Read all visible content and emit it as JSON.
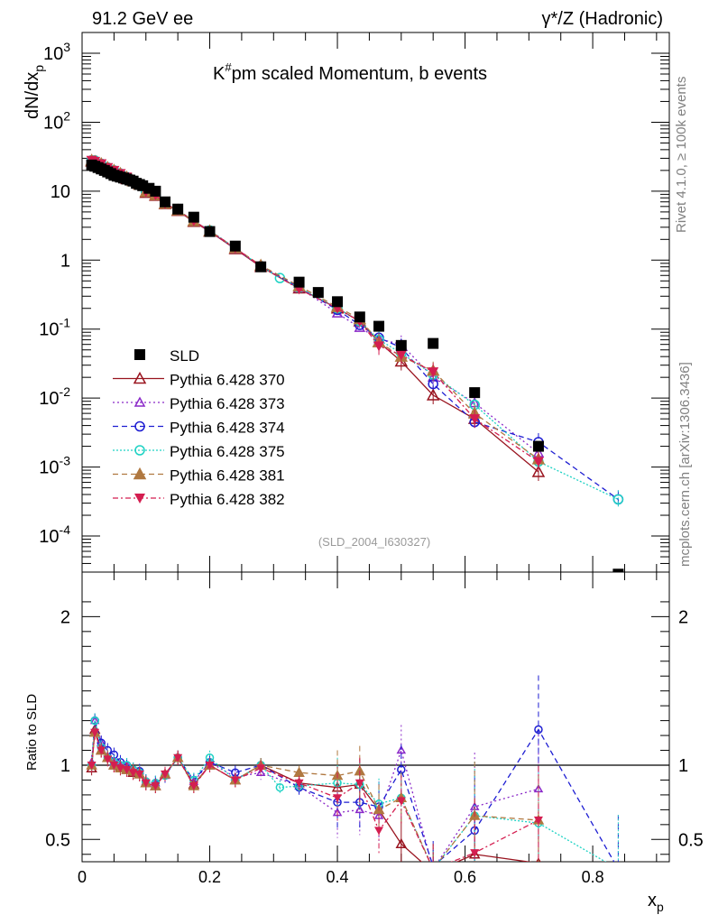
{
  "header": {
    "left_label": "91.2 GeV ee",
    "right_label": "γ*/Z (Hadronic)"
  },
  "side_text": {
    "rivet": "Rivet 4.1.0, ≥ 100k events",
    "site": "mcplots.cern.ch [arXiv:1306.3436]"
  },
  "colors": {
    "SLD": "#000000",
    "p370": "#99141f",
    "p373": "#8a28c8",
    "p374": "#1e1ed2",
    "p375": "#1ed2c4",
    "p381": "#b07840",
    "p382": "#d41e50"
  },
  "chart_data": {
    "type": "scatter",
    "title": "K#pm scaled Momentum, b events",
    "analysis_id": "(SLD_2004_I630327)",
    "xlabel": "x_p",
    "ylabel": "dN/dx_p",
    "ratio_ylabel": "Ratio to SLD",
    "xlim": [
      0,
      0.92
    ],
    "ylim": [
      3e-05,
      2000
    ],
    "ratio_ylim": [
      0.35,
      2.3
    ],
    "y_scale": "log",
    "legend_position": "center-left",
    "x_ticks": [
      "0",
      "0.2",
      "0.4",
      "0.6",
      "0.8"
    ],
    "y_ticks": [
      "10^3",
      "10^2",
      "10",
      "1",
      "10^-1",
      "10^-2",
      "10^-3",
      "10^-4"
    ],
    "ratio_ticks": [
      "0.5",
      "1",
      "2"
    ],
    "reference": {
      "name": "SLD",
      "x": [
        0.015,
        0.02,
        0.025,
        0.03,
        0.035,
        0.04,
        0.045,
        0.05,
        0.055,
        0.06,
        0.065,
        0.07,
        0.075,
        0.08,
        0.085,
        0.09,
        0.095,
        0.105,
        0.115,
        0.13,
        0.15,
        0.175,
        0.2,
        0.24,
        0.28,
        0.34,
        0.37,
        0.4,
        0.435,
        0.465,
        0.5,
        0.55,
        0.615,
        0.715,
        0.84
      ],
      "y": [
        24,
        23,
        22,
        21,
        20,
        19,
        18,
        17,
        16.5,
        16,
        15.5,
        15,
        14.5,
        14,
        13,
        12.5,
        12,
        11,
        10,
        7,
        5.5,
        4.2,
        2.6,
        1.6,
        0.8,
        0.48,
        0.34,
        0.25,
        0.15,
        0.11,
        0.058,
        0.062,
        0.012,
        0.002,
        2.8e-05
      ]
    },
    "series": [
      {
        "name": "Pythia 6.428 370",
        "color_key": "p370",
        "marker": "tri-up-open",
        "dash": "",
        "pos": "p370",
        "x": [
          0.015,
          0.02,
          0.03,
          0.04,
          0.05,
          0.06,
          0.07,
          0.08,
          0.09,
          0.1,
          0.115,
          0.13,
          0.15,
          0.175,
          0.2,
          0.24,
          0.28,
          0.34,
          0.4,
          0.435,
          0.465,
          0.5,
          0.55,
          0.615,
          0.715
        ],
        "y": [
          27,
          26,
          24,
          21,
          19,
          17,
          15,
          14,
          12.5,
          9.5,
          8.6,
          6.5,
          5.2,
          3.6,
          2.6,
          1.45,
          0.8,
          0.39,
          0.2,
          0.13,
          0.065,
          0.034,
          0.011,
          0.005,
          0.00085
        ],
        "ratio": [
          0.98,
          1.24,
          1.1,
          1.05,
          1.0,
          0.99,
          0.97,
          0.95,
          0.94,
          0.88,
          0.86,
          0.94,
          1.05,
          0.87,
          1.0,
          0.9,
          1.0,
          0.88,
          0.85,
          0.87,
          0.7,
          0.47,
          0.28,
          0.4,
          0.34
        ]
      },
      {
        "name": "Pythia 6.428 373",
        "color_key": "p373",
        "marker": "tri-up-open-small",
        "dash": "2,3",
        "pos": "p373",
        "x": [
          0.015,
          0.02,
          0.03,
          0.04,
          0.05,
          0.06,
          0.07,
          0.08,
          0.09,
          0.1,
          0.115,
          0.13,
          0.15,
          0.175,
          0.2,
          0.24,
          0.28,
          0.34,
          0.4,
          0.435,
          0.465,
          0.5,
          0.55,
          0.615,
          0.715
        ],
        "y": [
          28,
          27,
          25,
          22,
          20,
          18,
          16,
          14,
          12.5,
          9.8,
          8.8,
          6.6,
          5.3,
          3.7,
          2.65,
          1.45,
          0.82,
          0.4,
          0.17,
          0.105,
          0.072,
          0.06,
          0.02,
          0.0085,
          0.0016
        ],
        "ratio": [
          1.02,
          1.3,
          1.15,
          1.05,
          1.02,
          1.0,
          1.0,
          0.97,
          0.96,
          0.89,
          0.88,
          0.93,
          1.05,
          0.89,
          1.02,
          0.92,
          0.95,
          0.86,
          0.68,
          0.7,
          0.66,
          1.1,
          0.3,
          0.72,
          0.84
        ]
      },
      {
        "name": "Pythia 6.428 374",
        "color_key": "p374",
        "marker": "circle-open",
        "dash": "6,4",
        "pos": "p374",
        "x": [
          0.015,
          0.02,
          0.03,
          0.04,
          0.05,
          0.06,
          0.07,
          0.08,
          0.09,
          0.1,
          0.115,
          0.13,
          0.15,
          0.175,
          0.2,
          0.24,
          0.28,
          0.34,
          0.4,
          0.435,
          0.465,
          0.5,
          0.55,
          0.615,
          0.715,
          0.84
        ],
        "y": [
          28,
          27,
          25,
          22,
          20,
          18,
          16,
          14,
          12.5,
          9.8,
          8.8,
          6.6,
          5.3,
          3.7,
          2.65,
          1.5,
          0.82,
          0.4,
          0.19,
          0.115,
          0.075,
          0.054,
          0.016,
          0.0045,
          0.0023,
          0.00034
        ],
        "ratio": [
          1.0,
          1.3,
          1.15,
          1.1,
          1.07,
          1.02,
          1.0,
          0.97,
          0.96,
          0.89,
          0.88,
          0.93,
          1.05,
          0.9,
          1.02,
          0.95,
          1.0,
          0.85,
          0.75,
          0.75,
          0.72,
          0.97,
          0.32,
          0.56,
          1.24,
          0.3
        ]
      },
      {
        "name": "Pythia 6.428 375",
        "color_key": "p375",
        "marker": "circle-open-cyan",
        "dash": "2,2",
        "pos": "p375",
        "x": [
          0.015,
          0.02,
          0.03,
          0.04,
          0.05,
          0.06,
          0.07,
          0.08,
          0.09,
          0.1,
          0.115,
          0.13,
          0.15,
          0.175,
          0.2,
          0.24,
          0.28,
          0.31,
          0.34,
          0.4,
          0.435,
          0.465,
          0.5,
          0.55,
          0.615,
          0.715,
          0.84
        ],
        "y": [
          28,
          28,
          25,
          22,
          20,
          18,
          16,
          14,
          12.5,
          9.8,
          8.8,
          6.6,
          5.3,
          3.7,
          2.7,
          1.5,
          0.82,
          0.55,
          0.4,
          0.2,
          0.13,
          0.07,
          0.045,
          0.022,
          0.008,
          0.0012,
          0.00034
        ],
        "ratio": [
          1.0,
          1.3,
          1.12,
          1.05,
          1.02,
          1.0,
          1.0,
          0.97,
          0.95,
          0.89,
          0.88,
          0.93,
          1.05,
          0.9,
          1.05,
          0.9,
          1.0,
          0.85,
          0.86,
          0.88,
          0.87,
          0.74,
          0.78,
          0.3,
          0.66,
          0.61,
          0.3
        ]
      },
      {
        "name": "Pythia 6.428 381",
        "color_key": "p381",
        "marker": "tri-up-filled",
        "dash": "6,4",
        "pos": "p381",
        "x": [
          0.015,
          0.02,
          0.03,
          0.04,
          0.05,
          0.06,
          0.07,
          0.08,
          0.09,
          0.1,
          0.115,
          0.13,
          0.15,
          0.175,
          0.2,
          0.24,
          0.28,
          0.34,
          0.4,
          0.435,
          0.465,
          0.5,
          0.55,
          0.615,
          0.715
        ],
        "y": [
          28,
          27,
          25,
          22,
          20,
          18,
          16,
          14,
          12.5,
          9.8,
          8.8,
          6.6,
          5.3,
          3.7,
          2.65,
          1.5,
          0.84,
          0.42,
          0.21,
          0.14,
          0.065,
          0.04,
          0.025,
          0.006,
          0.0013
        ],
        "ratio": [
          1.0,
          1.22,
          1.1,
          1.05,
          1.0,
          0.98,
          0.97,
          0.96,
          0.94,
          0.88,
          0.86,
          0.94,
          1.05,
          0.86,
          1.0,
          0.9,
          1.0,
          0.95,
          0.93,
          0.96,
          0.7,
          0.78,
          0.3,
          0.66,
          0.63
        ]
      },
      {
        "name": "Pythia 6.428 382",
        "color_key": "p382",
        "marker": "tri-down-filled",
        "dash": "6,3,2,3",
        "pos": "p382",
        "x": [
          0.015,
          0.02,
          0.03,
          0.04,
          0.05,
          0.06,
          0.07,
          0.08,
          0.09,
          0.1,
          0.115,
          0.13,
          0.15,
          0.175,
          0.2,
          0.24,
          0.28,
          0.34,
          0.4,
          0.435,
          0.465,
          0.5,
          0.55,
          0.615,
          0.715
        ],
        "y": [
          28,
          27,
          25,
          22,
          20,
          18,
          16,
          14,
          12.5,
          9.8,
          8.8,
          6.6,
          5.3,
          3.7,
          2.65,
          1.5,
          0.82,
          0.38,
          0.2,
          0.13,
          0.057,
          0.042,
          0.024,
          0.005,
          0.0012
        ],
        "ratio": [
          1.0,
          1.22,
          1.1,
          1.04,
          1.0,
          0.98,
          0.97,
          0.95,
          0.94,
          0.88,
          0.86,
          0.94,
          1.05,
          0.86,
          1.0,
          0.9,
          0.98,
          0.88,
          0.78,
          0.88,
          0.56,
          0.76,
          0.3,
          0.41,
          0.63
        ]
      }
    ]
  }
}
